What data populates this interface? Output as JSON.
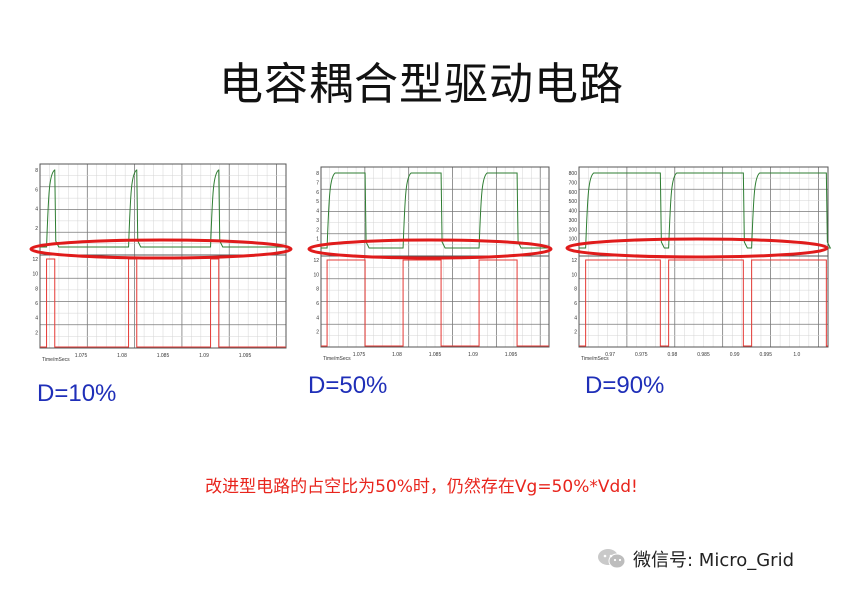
{
  "title": "电容耦合型驱动电路",
  "note": "改进型电路的占空比为50%时，仍然存在Vg=50%*Vdd!",
  "watermark": {
    "text": "微信号: Micro_Grid",
    "icon": "wechat-icon"
  },
  "colors": {
    "top_trace": "#2e7d32",
    "bottom_trace": "#e53935",
    "ellipse": "#e01b1b",
    "label": "#1f2fb8",
    "note": "#e8251d"
  },
  "chart_data": [
    {
      "type": "line",
      "label": "D=10%",
      "duty": 0.1,
      "x_ticks": [
        "1.075",
        "1.08",
        "1.085",
        "1.09",
        "1.095"
      ],
      "x_unit": "Time/mSecs",
      "top_y_ticks": [
        "2",
        "4",
        "6",
        "8"
      ],
      "bottom_y_ticks": [
        "2",
        "4",
        "6",
        "8",
        "10",
        "12"
      ],
      "grid": true
    },
    {
      "type": "line",
      "label": "D=50%",
      "duty": 0.5,
      "x_ticks": [
        "1.075",
        "1.08",
        "1.085",
        "1.09",
        "1.095"
      ],
      "x_unit": "Time/mSecs",
      "top_y_ticks": [
        "1",
        "2",
        "3",
        "4",
        "5",
        "6",
        "7",
        "8"
      ],
      "bottom_y_ticks": [
        "2",
        "4",
        "6",
        "8",
        "10",
        "12"
      ],
      "grid": true
    },
    {
      "type": "line",
      "label": "D=90%",
      "duty": 0.9,
      "x_ticks": [
        "0.97",
        "0.975",
        "0.98",
        "0.985",
        "0.99",
        "0.995",
        "1.0"
      ],
      "x_unit": "Time/mSecs",
      "top_y_ticks": [
        "100",
        "200",
        "300",
        "400",
        "500",
        "600",
        "700",
        "800"
      ],
      "bottom_y_ticks": [
        "2",
        "4",
        "6",
        "8",
        "10",
        "12"
      ],
      "grid": true
    }
  ]
}
